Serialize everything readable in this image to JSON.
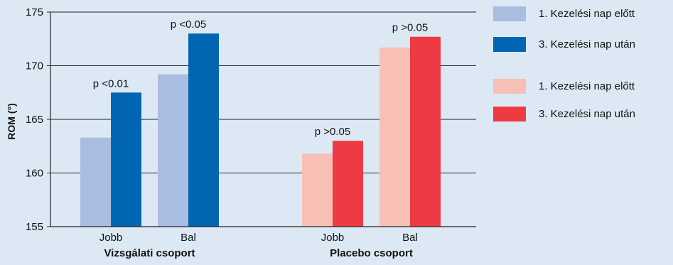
{
  "chart_data": {
    "type": "bar",
    "ylabel": "ROM  (°)",
    "ylim": [
      155,
      175
    ],
    "yticks": [
      155,
      160,
      165,
      170,
      175
    ],
    "grid": true,
    "legend_position": "right",
    "groups": [
      {
        "name": "Vizsgálati csoport",
        "categories": [
          "Jobb",
          "Bal"
        ],
        "series": [
          {
            "name": "1. Kezelési nap előtt",
            "color": "#a9bde0",
            "values": [
              163.3,
              169.2
            ]
          },
          {
            "name": "3. Kezelési nap után",
            "color": "#0066b2",
            "values": [
              167.5,
              173.0
            ]
          }
        ],
        "annotations": [
          "p <0.01",
          "p <0.05"
        ]
      },
      {
        "name": "Placebo csoport",
        "categories": [
          "Jobb",
          "Bal"
        ],
        "series": [
          {
            "name": "1. Kezelési nap előtt",
            "color": "#f7bfb5",
            "values": [
              161.8,
              171.7
            ]
          },
          {
            "name": "3. Kezelési nap után",
            "color": "#ee3b43",
            "values": [
              163.0,
              172.7
            ]
          }
        ],
        "annotations": [
          "p >0.05",
          "p >0.05"
        ]
      }
    ]
  }
}
